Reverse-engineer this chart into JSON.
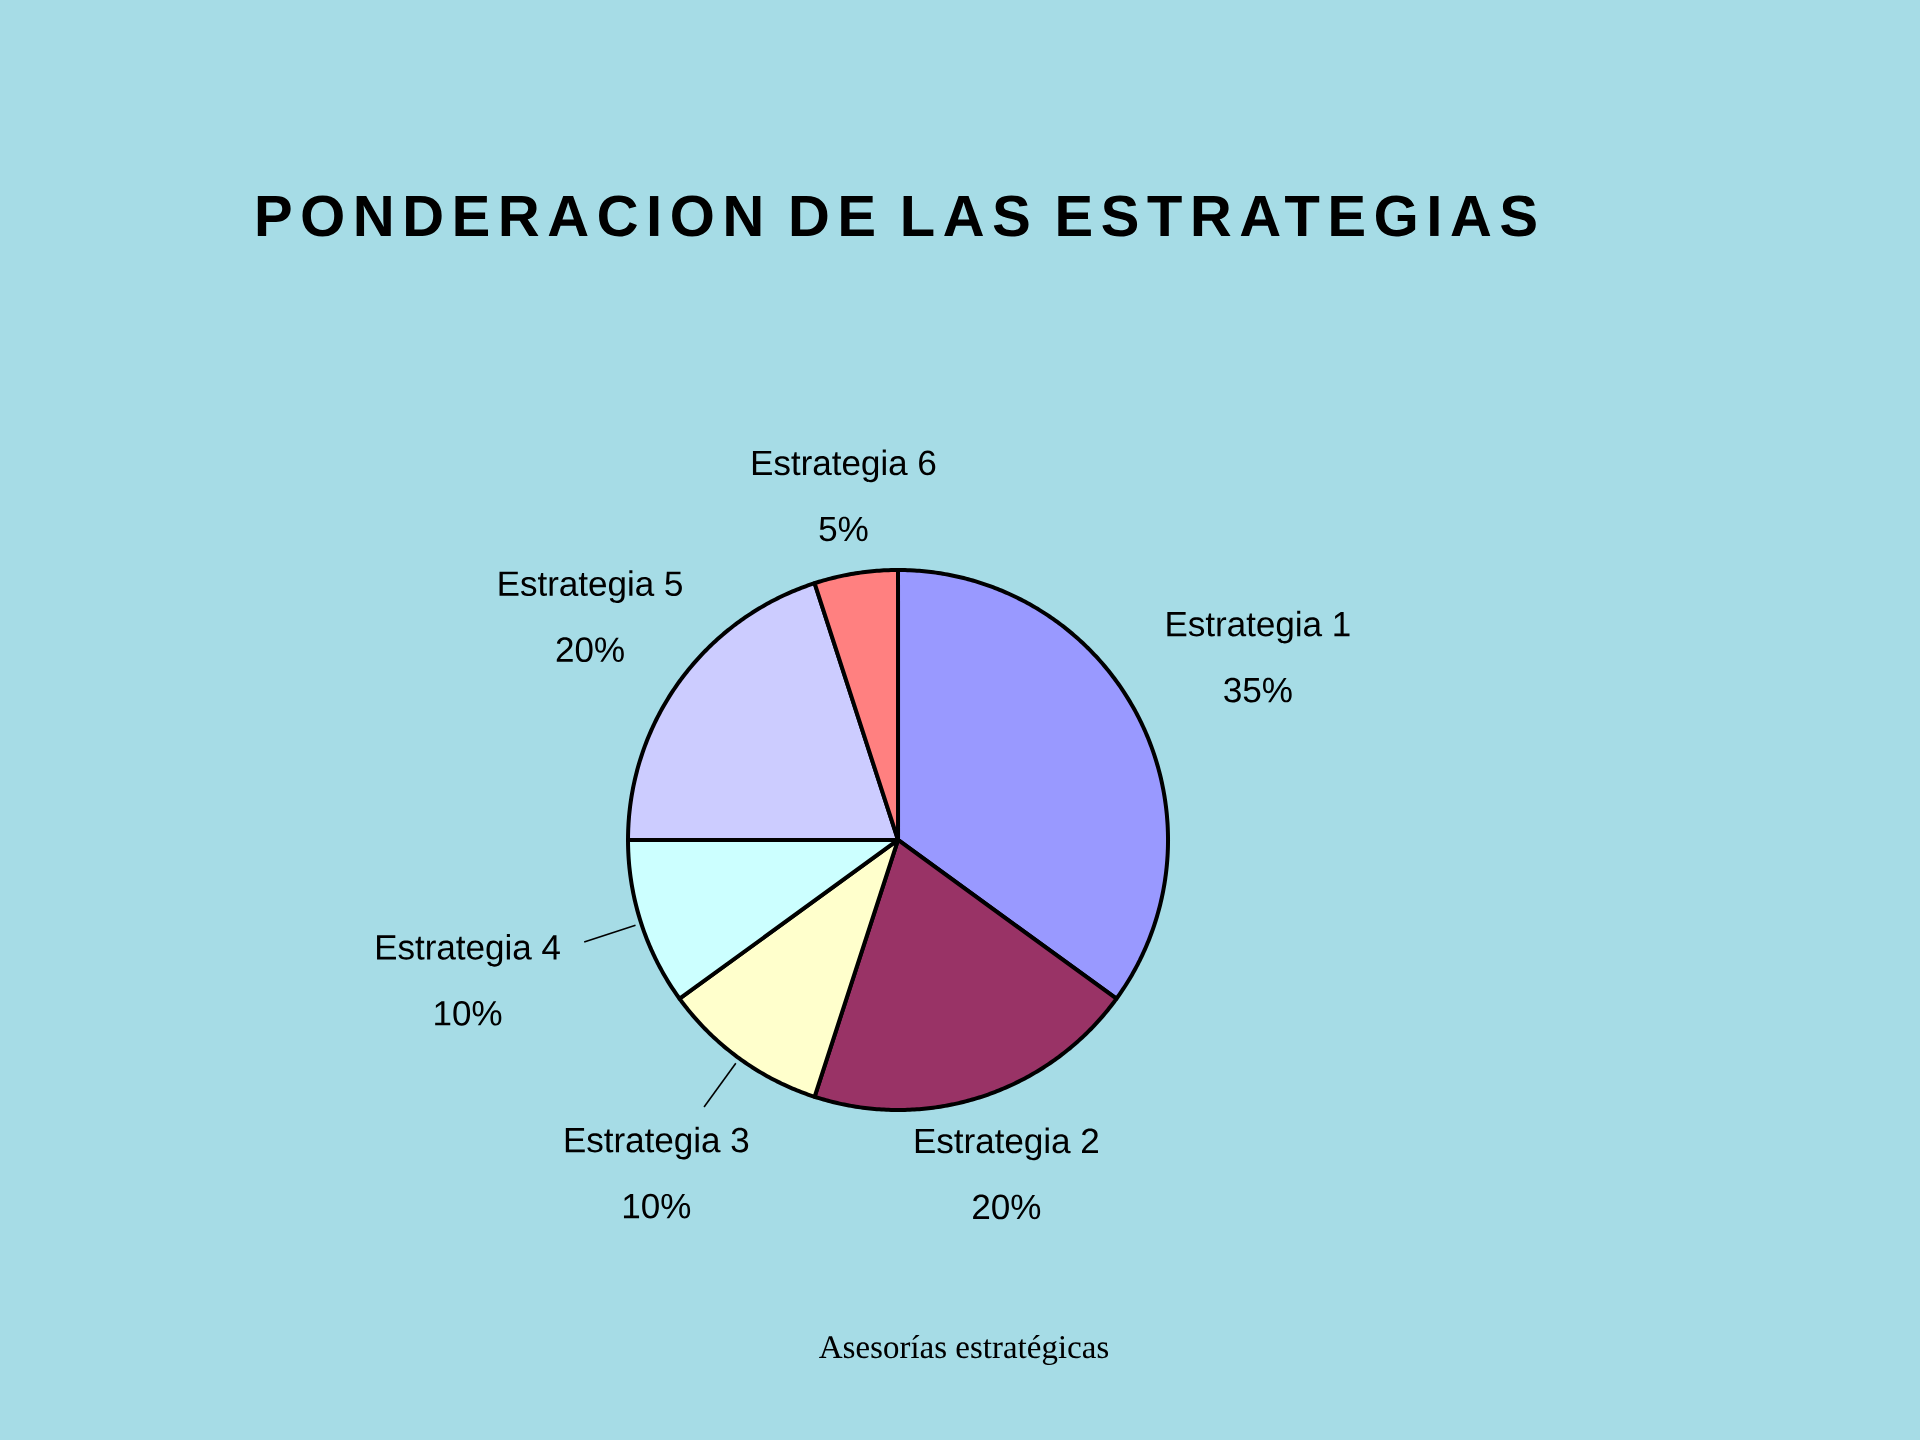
{
  "chart_data": {
    "type": "pie",
    "title": "PONDERACION DE LAS ESTRATEGIAS",
    "categories": [
      "Estrategia 1",
      "Estrategia 2",
      "Estrategia 3",
      "Estrategia 4",
      "Estrategia 5",
      "Estrategia 6"
    ],
    "values": [
      35,
      20,
      10,
      10,
      20,
      5
    ],
    "value_labels": [
      "35%",
      "20%",
      "10%",
      "10%",
      "20%",
      "5%"
    ],
    "colors": [
      "#9999ff",
      "#993366",
      "#ffffcc",
      "#ccffff",
      "#ccccff",
      "#ff8080"
    ],
    "annotations": [
      "Asesorías estratégicas"
    ]
  }
}
